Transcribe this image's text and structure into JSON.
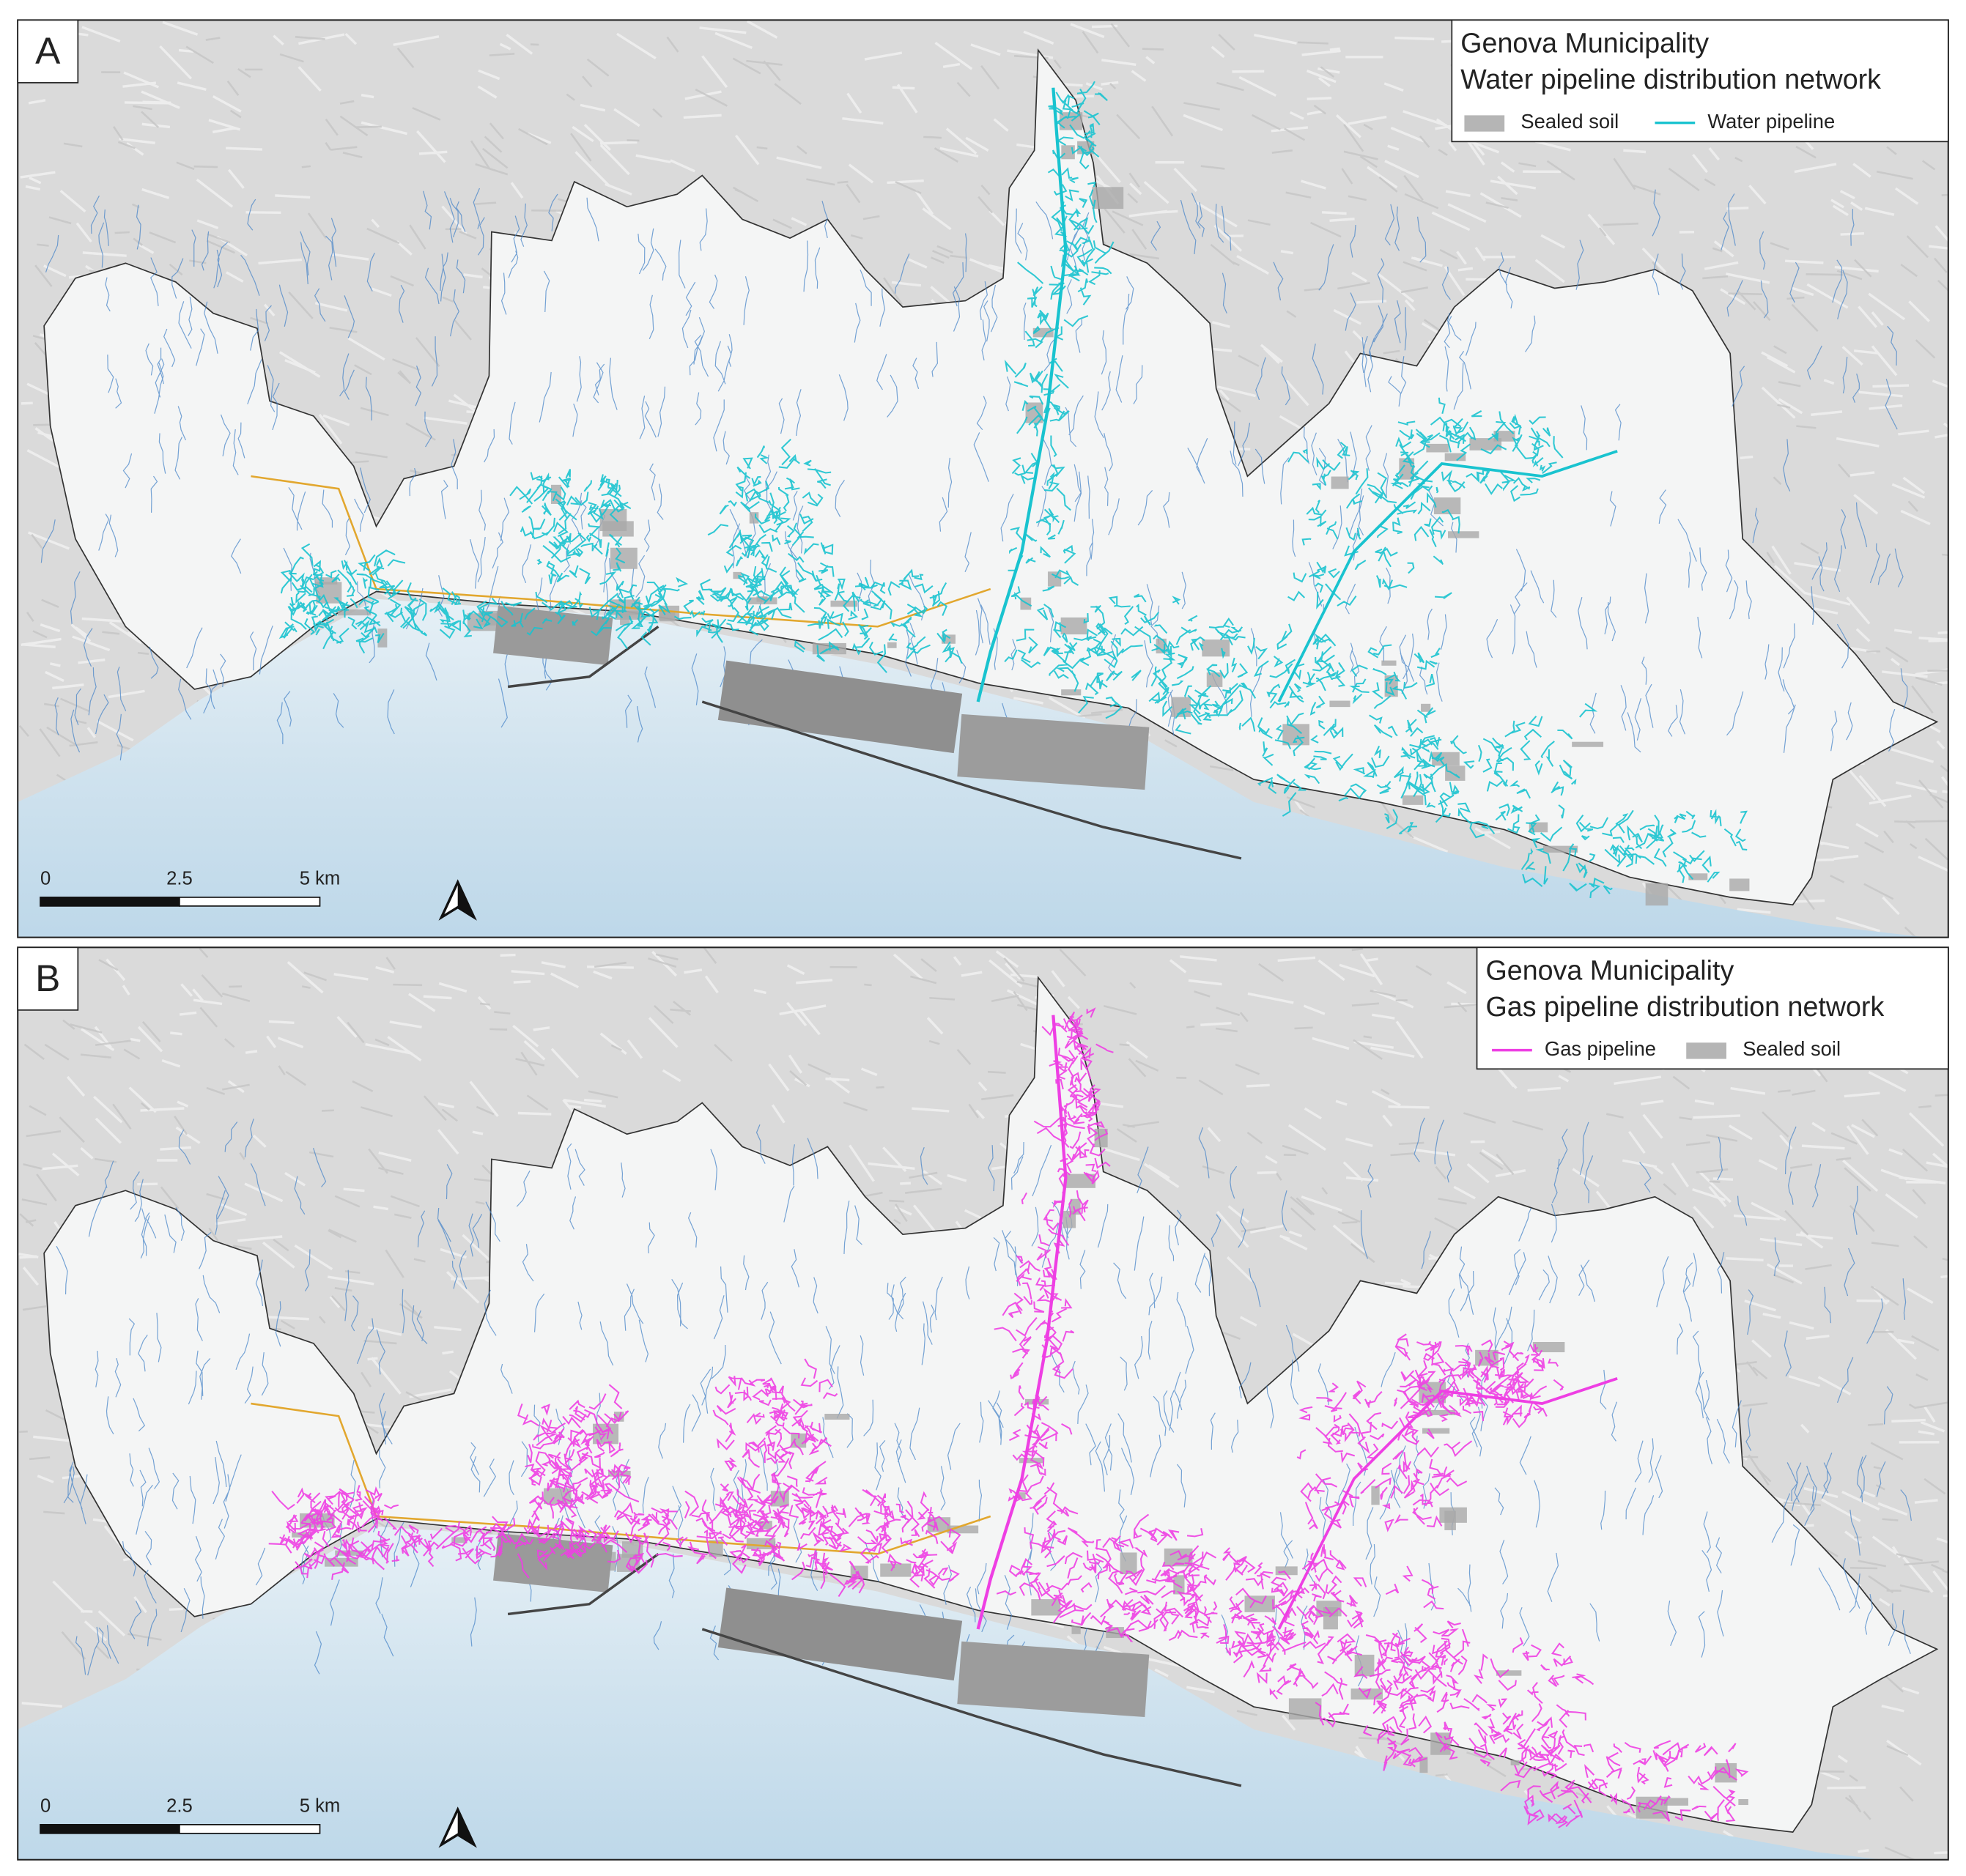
{
  "panels": [
    {
      "label": "A",
      "legend": {
        "title": [
          "Genova Municipality",
          "Water pipeline distribution network"
        ],
        "items": [
          {
            "label": "Sealed soil",
            "color": "#b5b5b5"
          },
          {
            "label": "Water pipeline",
            "color": "#19c3cf"
          }
        ]
      },
      "scale_bar": {
        "labels": [
          "0",
          "2.5",
          "5 km"
        ]
      }
    },
    {
      "label": "B",
      "legend": {
        "title": [
          "Genova Municipality",
          "Gas pipeline distribution network"
        ],
        "items": [
          {
            "label": "Gas pipeline",
            "color": "#ee3fe3"
          },
          {
            "label": "Sealed soil",
            "color": "#b5b5b5"
          }
        ]
      },
      "scale_bar": {
        "labels": [
          "0",
          "2.5",
          "5 km"
        ]
      }
    }
  ]
}
